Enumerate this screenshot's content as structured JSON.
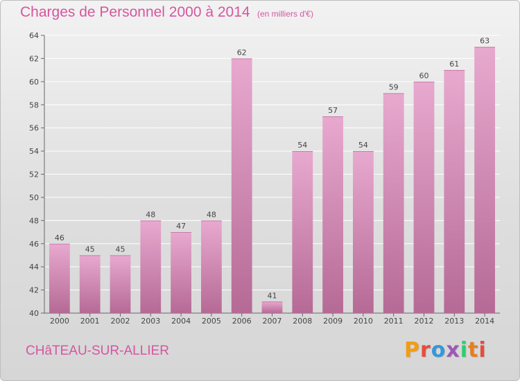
{
  "header": {
    "title": "Charges de Personnel 2000 à 2014",
    "subtitle": "(en milliers d'€)"
  },
  "footer": {
    "commune": "CHâTEAU-SUR-ALLIER",
    "logo_text": "Proxiti",
    "logo_colors": [
      "#f39c12",
      "#e74c3c",
      "#3498db",
      "#9b59b6",
      "#2ecc71",
      "#e67e22",
      "#e74c3c"
    ]
  },
  "colors": {
    "bar_light": "#e8a9cf",
    "bar_dark": "#b56a95",
    "text_accent": "#d6569f",
    "grid": "#ffffff"
  },
  "chart_data": {
    "type": "bar",
    "title": "Charges de Personnel 2000 à 2014",
    "subtitle": "(en milliers d'€)",
    "categories": [
      "2000",
      "2001",
      "2002",
      "2003",
      "2004",
      "2005",
      "2006",
      "2007",
      "2008",
      "2009",
      "2010",
      "2011",
      "2012",
      "2013",
      "2014"
    ],
    "values": [
      46,
      45,
      45,
      48,
      47,
      48,
      62,
      41,
      54,
      57,
      54,
      59,
      60,
      61,
      63
    ],
    "ylim": [
      40,
      64
    ],
    "yticks": [
      40,
      42,
      44,
      46,
      48,
      50,
      52,
      54,
      56,
      58,
      60,
      62,
      64
    ],
    "grid": true,
    "xlabel": "",
    "ylabel": ""
  }
}
